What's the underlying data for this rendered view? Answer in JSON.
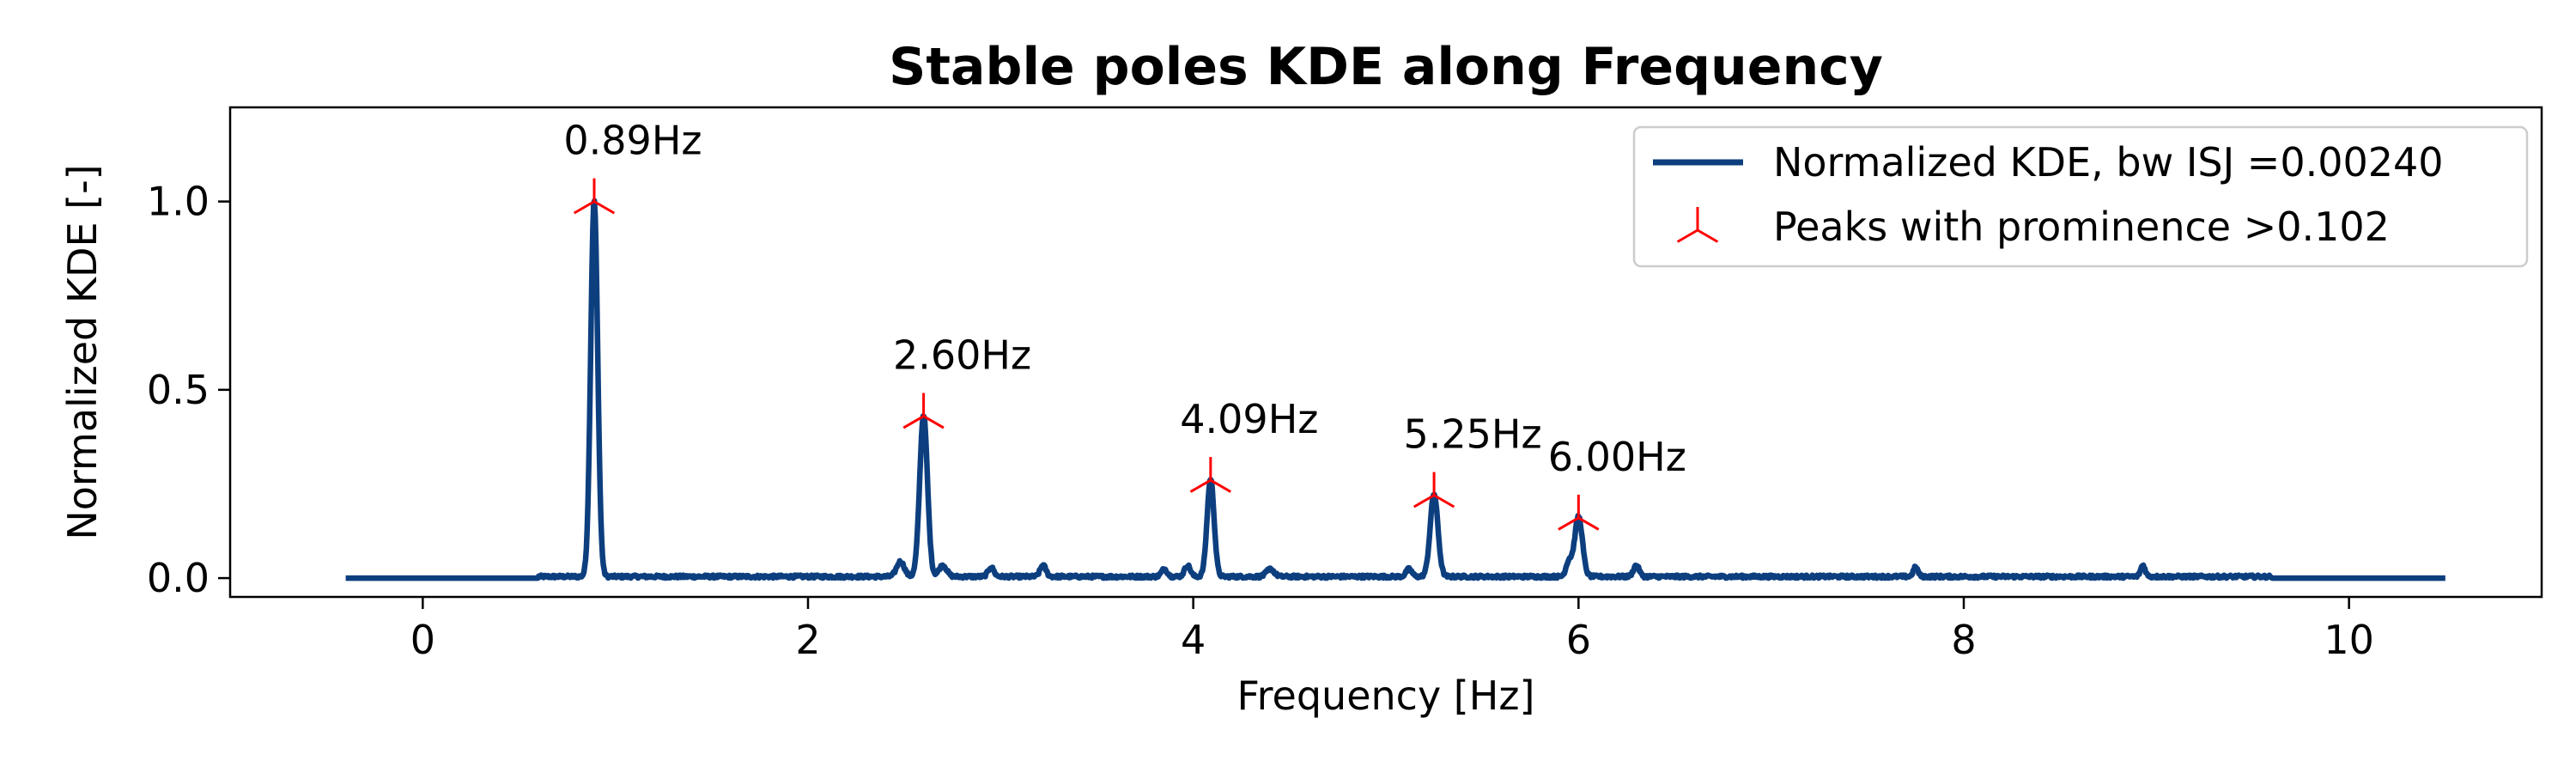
{
  "chart_data": {
    "type": "line",
    "title": "Stable poles KDE along Frequency",
    "xlabel": "Frequency [Hz]",
    "ylabel": "Normalized KDE [-]",
    "xlim": [
      -1.0,
      11.0
    ],
    "ylim": [
      -0.05,
      1.25
    ],
    "xticks": [
      0,
      2,
      4,
      6,
      8,
      10
    ],
    "xtick_labels": [
      "0",
      "2",
      "4",
      "6",
      "8",
      "10"
    ],
    "yticks": [
      0.0,
      0.5,
      1.0
    ],
    "ytick_labels": [
      "0.0",
      "0.5",
      "1.0"
    ],
    "grid": false,
    "legend_position": "top-right",
    "series": [
      {
        "name": "Normalized KDE, bw ISJ =0.00240",
        "color": "#0d3f7f",
        "x_range": [
          -0.4,
          10.5
        ],
        "baseline": 0.0,
        "noise_level": 0.008,
        "peaks": [
          {
            "x": 0.89,
            "y": 1.0,
            "width": 0.018
          },
          {
            "x": 2.6,
            "y": 0.43,
            "width": 0.02
          },
          {
            "x": 4.09,
            "y": 0.26,
            "width": 0.018
          },
          {
            "x": 5.25,
            "y": 0.22,
            "width": 0.02
          },
          {
            "x": 6.0,
            "y": 0.16,
            "width": 0.02
          },
          {
            "x": 2.48,
            "y": 0.04,
            "width": 0.02
          },
          {
            "x": 2.7,
            "y": 0.03,
            "width": 0.02
          },
          {
            "x": 2.95,
            "y": 0.025,
            "width": 0.015
          },
          {
            "x": 3.22,
            "y": 0.03,
            "width": 0.015
          },
          {
            "x": 3.85,
            "y": 0.02,
            "width": 0.015
          },
          {
            "x": 3.97,
            "y": 0.03,
            "width": 0.015
          },
          {
            "x": 4.4,
            "y": 0.02,
            "width": 0.02
          },
          {
            "x": 5.12,
            "y": 0.02,
            "width": 0.015
          },
          {
            "x": 5.95,
            "y": 0.04,
            "width": 0.015
          },
          {
            "x": 6.3,
            "y": 0.03,
            "width": 0.015
          },
          {
            "x": 7.75,
            "y": 0.025,
            "width": 0.012
          },
          {
            "x": 8.93,
            "y": 0.03,
            "width": 0.012
          }
        ]
      },
      {
        "name": "Peaks with prominence >0.102",
        "color": "#ff0000",
        "marker": "tri_up",
        "points": [
          {
            "x": 0.89,
            "y": 1.0,
            "label": "0.89Hz"
          },
          {
            "x": 2.6,
            "y": 0.43,
            "label": "2.60Hz"
          },
          {
            "x": 4.09,
            "y": 0.26,
            "label": "4.09Hz"
          },
          {
            "x": 5.25,
            "y": 0.22,
            "label": "5.25Hz"
          },
          {
            "x": 6.0,
            "y": 0.16,
            "label": "6.00Hz"
          }
        ]
      }
    ]
  }
}
